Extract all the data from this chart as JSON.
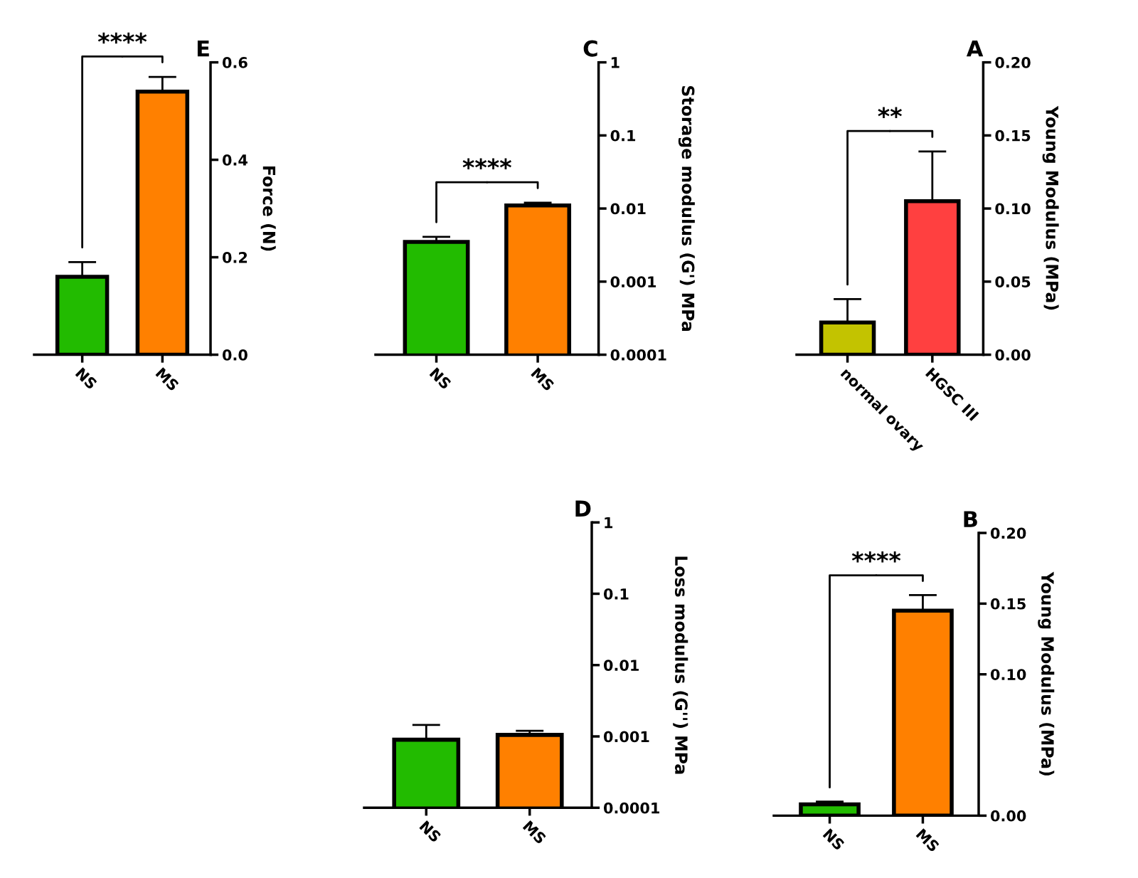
{
  "chart_data": [
    {
      "type": "bar",
      "title": "E",
      "ylabel": "Force (N)",
      "categories": [
        "NS",
        "MS"
      ],
      "values": [
        0.16,
        0.54
      ],
      "colors": [
        "#22bb00",
        "#ff8000"
      ],
      "errors": [
        [
          0.16,
          0.19
        ],
        [
          0.54,
          0.57
        ]
      ],
      "ylim": [
        0,
        0.6
      ],
      "yticks": [
        {
          "value": 0,
          "label": "0.0"
        },
        0.2,
        0.4,
        0.6
      ],
      "annotations": [
        "****"
      ],
      "grid": false,
      "legend": false
    },
    {
      "type": "bar",
      "title": "C",
      "ylabel": "Storage modulus (G') MPa",
      "categories": [
        "NS",
        "MS"
      ],
      "values": [
        0.0035,
        0.011
      ],
      "colors": [
        "#22bb00",
        "#ff8000"
      ],
      "errors": [
        [
          0.0035,
          0.0041
        ],
        [
          0.011,
          0.012
        ]
      ],
      "log": true,
      "ylim": [
        0.0001,
        1
      ],
      "yticks": [
        0.0001,
        0.001,
        0.01,
        0.1,
        1
      ],
      "annotations": [
        "****"
      ],
      "grid": false,
      "legend": false
    },
    {
      "type": "bar",
      "title": "A",
      "ylabel": "Young Modulus (MPa)",
      "categories": [
        "normal ovary",
        "HGSC III"
      ],
      "values": [
        0.022,
        0.105
      ],
      "colors": [
        "#c3c300",
        "#ff4040"
      ],
      "errors": [
        [
          0.022,
          0.038
        ],
        [
          0.105,
          0.139
        ]
      ],
      "ylim": [
        0,
        0.2
      ],
      "yticks": [
        {
          "value": 0,
          "label": "0.00"
        },
        0.05,
        {
          "value": 0.1,
          "label": "0.10"
        },
        0.15,
        {
          "value": 0.2,
          "label": "0.20"
        }
      ],
      "annotations": [
        "**"
      ],
      "grid": false,
      "legend": false
    },
    {
      "type": "bar",
      "title": "D",
      "ylabel": "Loss modulus (G'') MPa",
      "categories": [
        "NS",
        "MS"
      ],
      "values": [
        0.0009,
        0.00105
      ],
      "colors": [
        "#22bb00",
        "#ff8000"
      ],
      "errors": [
        [
          0.0009,
          0.00145
        ],
        [
          0.00105,
          0.0012
        ]
      ],
      "log": true,
      "ylim": [
        0.0001,
        1
      ],
      "yticks": [
        0.0001,
        0.001,
        0.01,
        0.1,
        1
      ],
      "grid": false,
      "legend": false
    },
    {
      "type": "bar",
      "title": "B",
      "ylabel": "Young Modulus (MPa)",
      "categories": [
        "NS",
        "MS"
      ],
      "values": [
        0.008,
        0.145
      ],
      "colors": [
        "#22bb00",
        "#ff8000"
      ],
      "errors": [
        [
          0.008,
          0.01
        ],
        [
          0.145,
          0.156
        ]
      ],
      "ylim": [
        0,
        0.2
      ],
      "yticks": [
        {
          "value": 0,
          "label": "0.00"
        },
        {
          "value": 0.1,
          "label": "0.10"
        },
        0.15,
        {
          "value": 0.2,
          "label": "0.20"
        }
      ],
      "annotations": [
        "****"
      ],
      "grid": false,
      "legend": false
    }
  ]
}
